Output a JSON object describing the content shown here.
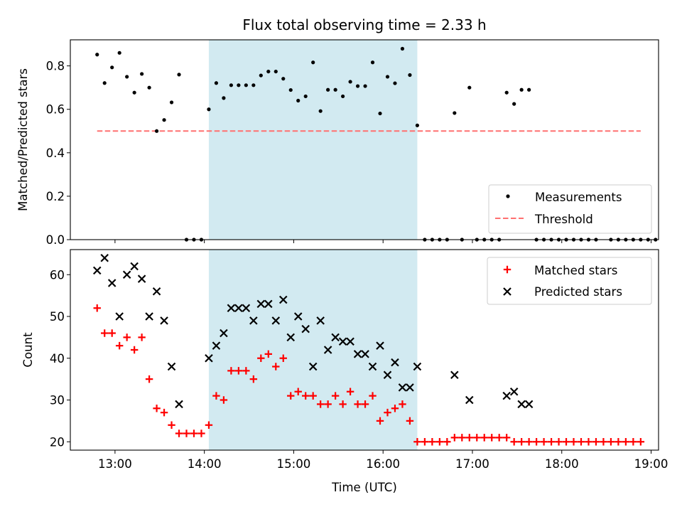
{
  "chart_data": {
    "title": "Flux total observing time = 2.33 h",
    "xlabel": "Time (UTC)",
    "xlim": [
      "12:30",
      "19:05"
    ],
    "xticks": [
      "13:00",
      "14:00",
      "15:00",
      "16:00",
      "17:00",
      "18:00",
      "19:00"
    ],
    "shaded_region": {
      "start": "14:03",
      "end": "16:23",
      "color": "#add8e6"
    },
    "panels": [
      {
        "type": "scatter",
        "ylabel": "Matched/Predicted stars",
        "ylim": [
          0,
          0.92
        ],
        "yticks": [
          "0.0",
          "0.2",
          "0.4",
          "0.6",
          "0.8"
        ],
        "legend_position": "lower right",
        "series": [
          {
            "name": "Measurements",
            "marker": "dot",
            "color": "#000000",
            "points": [
              [
                "12:48",
                0.852
              ],
              [
                "12:53",
                0.721
              ],
              [
                "12:58",
                0.793
              ],
              [
                "13:03",
                0.86
              ],
              [
                "13:08",
                0.75
              ],
              [
                "13:13",
                0.677
              ],
              [
                "13:18",
                0.763
              ],
              [
                "13:23",
                0.7
              ],
              [
                "13:28",
                0.5
              ],
              [
                "13:33",
                0.551
              ],
              [
                "13:38",
                0.632
              ],
              [
                "13:43",
                0.76
              ],
              [
                "13:48",
                0
              ],
              [
                "13:53",
                0
              ],
              [
                "13:58",
                0
              ],
              [
                "14:03",
                0.6
              ],
              [
                "14:08",
                0.721
              ],
              [
                "14:13",
                0.652
              ],
              [
                "14:18",
                0.711
              ],
              [
                "14:23",
                0.711
              ],
              [
                "14:28",
                0.711
              ],
              [
                "14:33",
                0.711
              ],
              [
                "14:38",
                0.756
              ],
              [
                "14:43",
                0.774
              ],
              [
                "14:48",
                0.774
              ],
              [
                "14:53",
                0.741
              ],
              [
                "14:58",
                0.689
              ],
              [
                "15:03",
                0.64
              ],
              [
                "15:08",
                0.66
              ],
              [
                "15:13",
                0.816
              ],
              [
                "15:18",
                0.592
              ],
              [
                "15:23",
                0.69
              ],
              [
                "15:28",
                0.69
              ],
              [
                "15:33",
                0.66
              ],
              [
                "15:38",
                0.727
              ],
              [
                "15:43",
                0.707
              ],
              [
                "15:48",
                0.707
              ],
              [
                "15:53",
                0.816
              ],
              [
                "15:58",
                0.581
              ],
              [
                "16:03",
                0.75
              ],
              [
                "16:08",
                0.72
              ],
              [
                "16:13",
                0.879
              ],
              [
                "16:18",
                0.758
              ],
              [
                "16:23",
                0.526
              ],
              [
                "16:28",
                0
              ],
              [
                "16:33",
                0
              ],
              [
                "16:38",
                0
              ],
              [
                "16:43",
                0
              ],
              [
                "16:53",
                0
              ],
              [
                "17:03",
                0
              ],
              [
                "17:08",
                0
              ],
              [
                "17:13",
                0
              ],
              [
                "17:18",
                0
              ],
              [
                "17:43",
                0
              ],
              [
                "17:48",
                0
              ],
              [
                "17:53",
                0
              ],
              [
                "17:58",
                0
              ],
              [
                "18:03",
                0
              ],
              [
                "18:08",
                0
              ],
              [
                "18:13",
                0
              ],
              [
                "18:18",
                0
              ],
              [
                "18:23",
                0
              ],
              [
                "18:33",
                0
              ],
              [
                "18:38",
                0
              ],
              [
                "18:43",
                0
              ],
              [
                "18:48",
                0
              ],
              [
                "18:53",
                0
              ],
              [
                "18:58",
                0
              ],
              [
                "19:03",
                0
              ],
              [
                "16:48",
                0.583
              ],
              [
                "16:58",
                0.7
              ],
              [
                "17:23",
                0.677
              ],
              [
                "17:28",
                0.625
              ],
              [
                "17:33",
                0.69
              ],
              [
                "17:38",
                0.69
              ]
            ]
          },
          {
            "name": "Threshold",
            "style": "dashed",
            "color": "#ff7070",
            "points": [
              [
                "12:48",
                0.5
              ],
              [
                "18:53",
                0.5
              ]
            ]
          }
        ]
      },
      {
        "type": "scatter",
        "ylabel": "Count",
        "ylim": [
          18,
          66
        ],
        "yticks": [
          "20",
          "30",
          "40",
          "50",
          "60"
        ],
        "legend_position": "upper right",
        "series": [
          {
            "name": "Matched stars",
            "marker": "plus",
            "color": "#ff0000",
            "points": [
              [
                "12:48",
                52
              ],
              [
                "12:53",
                46
              ],
              [
                "12:58",
                46
              ],
              [
                "13:03",
                43
              ],
              [
                "13:08",
                45
              ],
              [
                "13:13",
                42
              ],
              [
                "13:18",
                45
              ],
              [
                "13:23",
                35
              ],
              [
                "13:28",
                28
              ],
              [
                "13:33",
                27
              ],
              [
                "13:38",
                24
              ],
              [
                "13:43",
                22
              ],
              [
                "13:48",
                22
              ],
              [
                "13:53",
                22
              ],
              [
                "13:58",
                22
              ],
              [
                "14:03",
                24
              ],
              [
                "14:08",
                31
              ],
              [
                "14:13",
                30
              ],
              [
                "14:18",
                37
              ],
              [
                "14:23",
                37
              ],
              [
                "14:28",
                37
              ],
              [
                "14:33",
                35
              ],
              [
                "14:38",
                40
              ],
              [
                "14:43",
                41
              ],
              [
                "14:48",
                38
              ],
              [
                "14:53",
                40
              ],
              [
                "14:58",
                31
              ],
              [
                "15:03",
                32
              ],
              [
                "15:08",
                31
              ],
              [
                "15:13",
                31
              ],
              [
                "15:18",
                29
              ],
              [
                "15:23",
                29
              ],
              [
                "15:28",
                31
              ],
              [
                "15:33",
                29
              ],
              [
                "15:38",
                32
              ],
              [
                "15:43",
                29
              ],
              [
                "15:48",
                29
              ],
              [
                "15:53",
                31
              ],
              [
                "15:58",
                25
              ],
              [
                "16:03",
                27
              ],
              [
                "16:08",
                28
              ],
              [
                "16:13",
                29
              ],
              [
                "16:18",
                25
              ],
              [
                "16:23",
                20
              ],
              [
                "16:28",
                20
              ],
              [
                "16:33",
                20
              ],
              [
                "16:38",
                20
              ],
              [
                "16:43",
                20
              ],
              [
                "16:48",
                21
              ],
              [
                "16:53",
                21
              ],
              [
                "16:58",
                21
              ],
              [
                "17:03",
                21
              ],
              [
                "17:08",
                21
              ],
              [
                "17:13",
                21
              ],
              [
                "17:18",
                21
              ],
              [
                "17:23",
                21
              ],
              [
                "17:28",
                20
              ],
              [
                "17:33",
                20
              ],
              [
                "17:38",
                20
              ],
              [
                "17:43",
                20
              ],
              [
                "17:48",
                20
              ],
              [
                "17:53",
                20
              ],
              [
                "17:58",
                20
              ],
              [
                "18:03",
                20
              ],
              [
                "18:08",
                20
              ],
              [
                "18:13",
                20
              ],
              [
                "18:18",
                20
              ],
              [
                "18:23",
                20
              ],
              [
                "18:28",
                20
              ],
              [
                "18:33",
                20
              ],
              [
                "18:38",
                20
              ],
              [
                "18:43",
                20
              ],
              [
                "18:48",
                20
              ],
              [
                "18:53",
                20
              ]
            ]
          },
          {
            "name": "Predicted stars",
            "marker": "x",
            "color": "#000000",
            "points": [
              [
                "12:48",
                61
              ],
              [
                "12:53",
                64
              ],
              [
                "12:58",
                58
              ],
              [
                "13:03",
                50
              ],
              [
                "13:08",
                60
              ],
              [
                "13:13",
                62
              ],
              [
                "13:18",
                59
              ],
              [
                "13:23",
                50
              ],
              [
                "13:28",
                56
              ],
              [
                "13:33",
                49
              ],
              [
                "13:38",
                38
              ],
              [
                "13:43",
                29
              ],
              [
                "14:03",
                40
              ],
              [
                "14:08",
                43
              ],
              [
                "14:13",
                46
              ],
              [
                "14:18",
                52
              ],
              [
                "14:23",
                52
              ],
              [
                "14:28",
                52
              ],
              [
                "14:33",
                49
              ],
              [
                "14:38",
                53
              ],
              [
                "14:43",
                53
              ],
              [
                "14:48",
                49
              ],
              [
                "14:53",
                54
              ],
              [
                "14:58",
                45
              ],
              [
                "15:03",
                50
              ],
              [
                "15:08",
                47
              ],
              [
                "15:13",
                38
              ],
              [
                "15:18",
                49
              ],
              [
                "15:23",
                42
              ],
              [
                "15:28",
                45
              ],
              [
                "15:33",
                44
              ],
              [
                "15:38",
                44
              ],
              [
                "15:43",
                41
              ],
              [
                "15:48",
                41
              ],
              [
                "15:53",
                38
              ],
              [
                "15:58",
                43
              ],
              [
                "16:03",
                36
              ],
              [
                "16:08",
                39
              ],
              [
                "16:13",
                33
              ],
              [
                "16:18",
                33
              ],
              [
                "16:23",
                38
              ],
              [
                "16:48",
                36
              ],
              [
                "16:58",
                30
              ],
              [
                "17:23",
                31
              ],
              [
                "17:28",
                32
              ],
              [
                "17:33",
                29
              ],
              [
                "17:38",
                29
              ]
            ]
          }
        ]
      }
    ]
  }
}
